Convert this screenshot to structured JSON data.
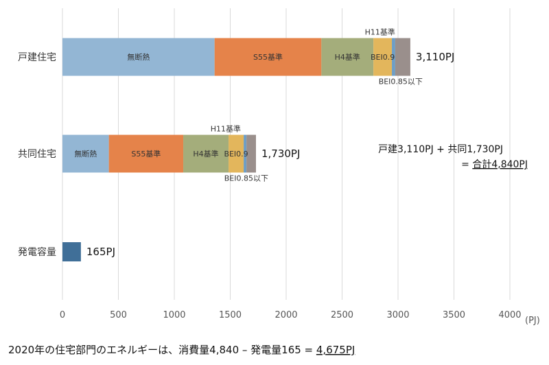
{
  "chart_data": {
    "type": "bar",
    "orientation": "horizontal",
    "stacked": true,
    "categories": [
      "戸建住宅",
      "共同住宅",
      "発電容量"
    ],
    "series": [
      {
        "key": "mudan",
        "values": [
          1360,
          415,
          0
        ],
        "color": "#93b6d4"
      },
      {
        "key": "s55",
        "values": [
          955,
          665,
          0
        ],
        "color": "#e5834a"
      },
      {
        "key": "h4",
        "values": [
          465,
          405,
          0
        ],
        "color": "#a4ad7b"
      },
      {
        "key": "h11",
        "values": [
          165,
          135,
          0
        ],
        "color": "#e3b65c"
      },
      {
        "key": "bei09",
        "values": [
          30,
          25,
          0
        ],
        "color": "#6f9ec4"
      },
      {
        "key": "bei085",
        "values": [
          135,
          85,
          0
        ],
        "color": "#9a8f8c"
      },
      {
        "key": "gen",
        "values": [
          0,
          0,
          165
        ],
        "color": "#406f98"
      }
    ],
    "segment_labels": [
      {
        "row": 0,
        "seg": 0,
        "text": "無断熱"
      },
      {
        "row": 0,
        "seg": 1,
        "text": "S55基準"
      },
      {
        "row": 0,
        "seg": 2,
        "text": "H4基準"
      },
      {
        "row": 0,
        "seg": 3,
        "text": "BEI0.9"
      },
      {
        "row": 1,
        "seg": 0,
        "text": "無断熱"
      },
      {
        "row": 1,
        "seg": 1,
        "text": "S55基準"
      },
      {
        "row": 1,
        "seg": 2,
        "text": "H4基準"
      },
      {
        "row": 1,
        "seg": 3,
        "text": "BEI0.9"
      }
    ],
    "callouts": [
      {
        "row": 0,
        "pos": "above",
        "text": "H11基準"
      },
      {
        "row": 0,
        "pos": "below",
        "text": "BEI0.85以下"
      },
      {
        "row": 1,
        "pos": "above",
        "text": "H11基準"
      },
      {
        "row": 1,
        "pos": "below",
        "text": "BEI0.85以下"
      }
    ],
    "totals": [
      "3,110PJ",
      "1,730PJ",
      "165PJ"
    ],
    "xlim": [
      0,
      4000
    ],
    "xticks": [
      0,
      500,
      1000,
      1500,
      2000,
      2500,
      3000,
      3500,
      4000
    ],
    "xunit": "(PJ)",
    "grid": true
  },
  "note": {
    "line1": "戸建3,110PJ + 共同1,730PJ",
    "line2_prefix": "= ",
    "line2_underlined": "合計4,840PJ"
  },
  "caption": {
    "text": "2020年の住宅部門のエネルギーは、消費量4,840 – 発電量165 = ",
    "underlined": "4,675PJ"
  }
}
